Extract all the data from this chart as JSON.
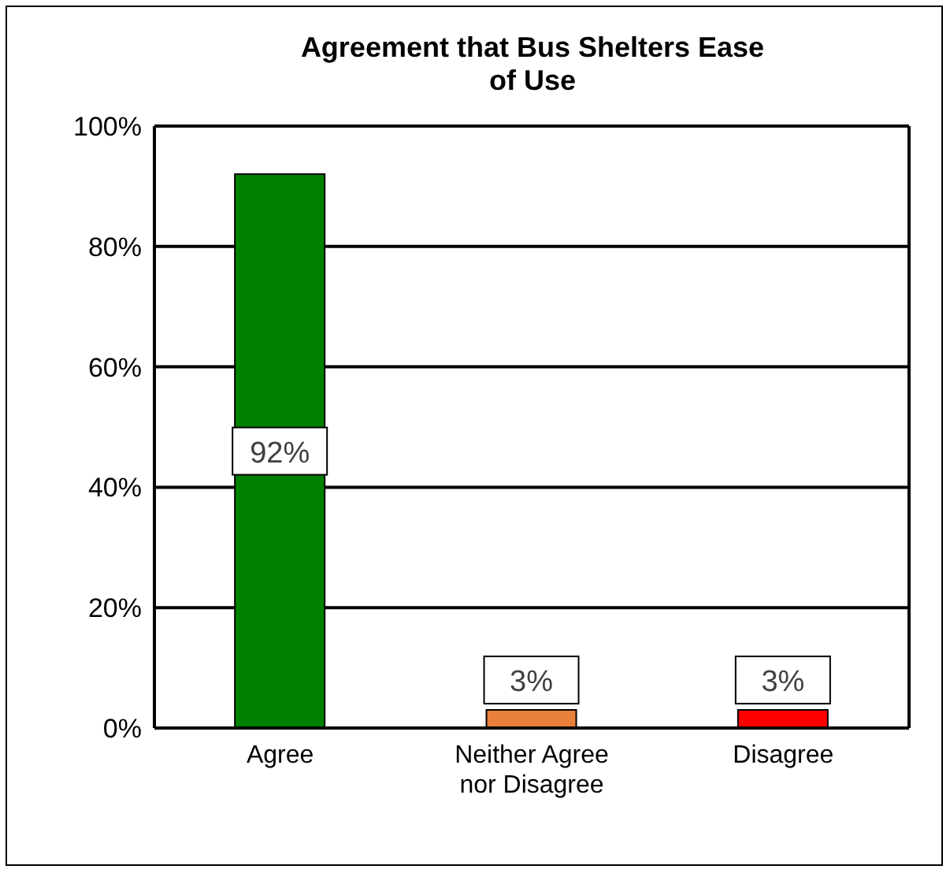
{
  "chart_data": {
    "type": "bar",
    "title": "Agreement that Bus Shelters Ease of Use",
    "categories": [
      "Agree",
      "Neither Agree nor Disagree",
      "Disagree"
    ],
    "values": [
      92,
      3,
      3
    ],
    "colors": [
      "#008000",
      "#e9803a",
      "#ff0000"
    ],
    "ylim": [
      0,
      100
    ],
    "yticks": [
      {
        "value": 0,
        "label": "0%"
      },
      {
        "value": 20,
        "label": "20%"
      },
      {
        "value": 40,
        "label": "40%"
      },
      {
        "value": 60,
        "label": "60%"
      },
      {
        "value": 80,
        "label": "80%"
      },
      {
        "value": 100,
        "label": "100%"
      }
    ],
    "value_labels": [
      "92%",
      "3%",
      "3%"
    ],
    "grid": "y"
  }
}
